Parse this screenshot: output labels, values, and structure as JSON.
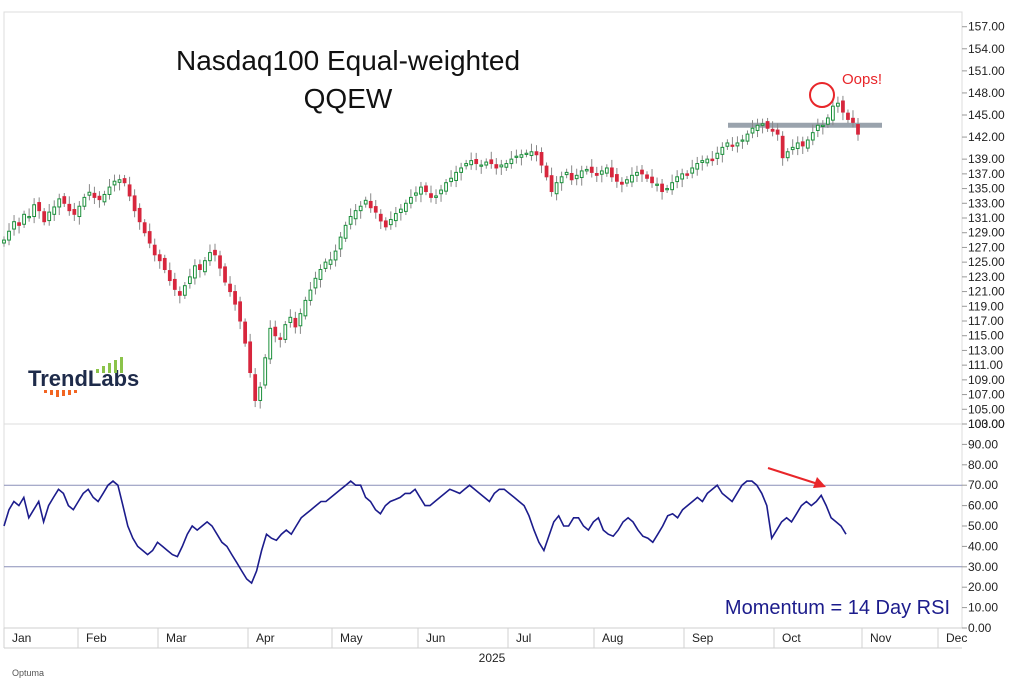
{
  "title": "Nasdaq100 Equal-weighted",
  "subtitle": "QQEW",
  "logo_text": "TrendLabs",
  "annotation": {
    "text": "Oops!",
    "color": "#e8262a"
  },
  "rsi_label": "Momentum = 14 Day RSI",
  "footer": {
    "year": "2025",
    "brand": "Optuma"
  },
  "colors": {
    "up": "#1a8f3a",
    "down": "#d7263d",
    "rsi": "#1c1c8c",
    "resistance": "#9aa3ad",
    "accent": "#e8262a"
  },
  "chart_data": [
    {
      "type": "candlestick",
      "title": "Nasdaq100 Equal-weighted",
      "subtitle": "QQEW",
      "ylim": [
        103,
        159
      ],
      "y_ticks": [
        "103.00",
        "105.00",
        "107.00",
        "109.00",
        "111.00",
        "113.00",
        "115.00",
        "117.00",
        "119.00",
        "121.00",
        "123.00",
        "125.00",
        "127.00",
        "129.00",
        "131.00",
        "133.00",
        "135.00",
        "137.00",
        "139.00",
        "142.00",
        "145.00",
        "148.00",
        "151.00",
        "154.00",
        "157.00"
      ],
      "x_labels": [
        "Jan",
        "Feb",
        "Mar",
        "Apr",
        "May",
        "Jun",
        "Jul",
        "Aug",
        "Sep",
        "Oct",
        "Nov",
        "Dec"
      ],
      "x_year": "2025",
      "resistance_level": 143.6,
      "close": [
        128.0,
        129.2,
        130.5,
        130.0,
        131.5,
        131.2,
        132.8,
        132.0,
        130.5,
        131.8,
        132.5,
        133.6,
        133.0,
        132.0,
        131.5,
        132.6,
        133.8,
        134.5,
        133.8,
        133.5,
        134.2,
        135.2,
        136.0,
        136.2,
        135.8,
        134.0,
        132.0,
        130.5,
        129.0,
        127.6,
        126.0,
        125.2,
        124.0,
        122.5,
        121.3,
        120.5,
        121.8,
        123.0,
        124.5,
        124.0,
        125.2,
        126.3,
        126.0,
        124.2,
        122.3,
        121.0,
        119.3,
        117.0,
        114.0,
        110.0,
        106.2,
        108.0,
        112.0,
        116.0,
        115.0,
        114.5,
        116.5,
        117.5,
        116.2,
        118.0,
        119.8,
        121.2,
        122.8,
        124.0,
        125.0,
        125.3,
        126.5,
        128.4,
        130.0,
        131.2,
        132.0,
        132.6,
        133.4,
        132.4,
        131.8,
        130.6,
        129.8,
        130.8,
        131.6,
        132.2,
        133.0,
        133.8,
        134.4,
        135.2,
        134.6,
        133.8,
        134.0,
        134.8,
        135.8,
        136.4,
        137.2,
        137.8,
        138.4,
        138.8,
        138.4,
        138.2,
        138.6,
        138.4,
        137.8,
        138.2,
        138.4,
        139.0,
        139.4,
        139.6,
        139.8,
        140.0,
        139.6,
        138.2,
        136.6,
        134.6,
        135.8,
        136.6,
        137.2,
        136.2,
        136.8,
        137.4,
        137.6,
        137.2,
        136.8,
        137.4,
        137.8,
        136.6,
        136.0,
        135.6,
        136.2,
        136.8,
        137.2,
        137.0,
        136.4,
        135.8,
        135.6,
        134.6,
        135.0,
        135.8,
        136.6,
        137.0,
        136.8,
        137.8,
        138.4,
        138.8,
        139.0,
        138.8,
        139.8,
        140.6,
        141.2,
        140.8,
        141.2,
        141.6,
        142.4,
        143.2,
        143.6,
        143.8,
        143.2,
        142.8,
        142.4,
        139.2,
        140.0,
        140.6,
        141.2,
        140.8,
        141.6,
        142.6,
        143.6,
        143.6,
        144.6,
        146.2,
        146.6,
        145.4,
        144.4,
        144.0,
        142.4
      ]
    },
    {
      "type": "line",
      "ylabel": "Momentum = 14 Day RSI",
      "ylim": [
        0,
        100
      ],
      "y_ticks": [
        "0.00",
        "10.00",
        "20.00",
        "30.00",
        "40.00",
        "50.00",
        "60.00",
        "70.00",
        "80.00",
        "90.00",
        "100.00"
      ],
      "reference_lines": [
        70,
        30
      ],
      "series": [
        {
          "values": [
            50,
            58,
            62,
            60,
            64,
            54,
            58,
            62,
            52,
            60,
            64,
            68,
            66,
            60,
            58,
            62,
            66,
            68,
            64,
            62,
            66,
            70,
            72,
            70,
            60,
            50,
            44,
            40,
            38,
            36,
            38,
            42,
            40,
            38,
            36,
            35,
            40,
            46,
            50,
            48,
            50,
            52,
            50,
            46,
            42,
            40,
            36,
            32,
            28,
            24,
            22,
            28,
            38,
            46,
            44,
            43,
            46,
            48,
            46,
            50,
            54,
            56,
            58,
            60,
            62,
            62,
            64,
            66,
            68,
            70,
            72,
            70,
            70,
            64,
            62,
            58,
            56,
            60,
            62,
            63,
            64,
            66,
            66,
            68,
            64,
            60,
            60,
            62,
            64,
            66,
            68,
            67,
            66,
            68,
            70,
            68,
            66,
            64,
            62,
            66,
            68,
            68,
            66,
            64,
            62,
            60,
            55,
            48,
            42,
            38,
            45,
            52,
            55,
            50,
            50,
            54,
            54,
            50,
            48,
            52,
            54,
            48,
            46,
            45,
            48,
            52,
            54,
            52,
            48,
            45,
            44,
            42,
            46,
            50,
            55,
            56,
            54,
            58,
            60,
            62,
            64,
            62,
            66,
            68,
            70,
            66,
            64,
            62,
            66,
            70,
            72,
            72,
            70,
            66,
            60,
            44,
            48,
            52,
            54,
            52,
            56,
            60,
            62,
            60,
            62,
            65,
            60,
            54,
            52,
            50,
            46
          ]
        }
      ]
    }
  ]
}
